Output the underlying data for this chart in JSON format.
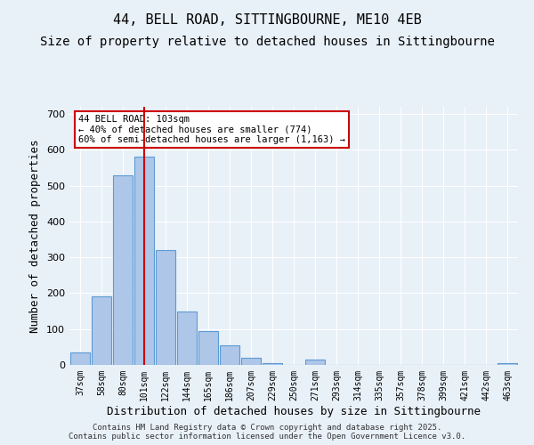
{
  "title1": "44, BELL ROAD, SITTINGBOURNE, ME10 4EB",
  "title2": "Size of property relative to detached houses in Sittingbourne",
  "xlabel": "Distribution of detached houses by size in Sittingbourne",
  "ylabel": "Number of detached properties",
  "bar_labels": [
    "37sqm",
    "58sqm",
    "80sqm",
    "101sqm",
    "122sqm",
    "144sqm",
    "165sqm",
    "186sqm",
    "207sqm",
    "229sqm",
    "250sqm",
    "271sqm",
    "293sqm",
    "314sqm",
    "335sqm",
    "357sqm",
    "378sqm",
    "399sqm",
    "421sqm",
    "442sqm",
    "463sqm"
  ],
  "bar_values": [
    35,
    190,
    530,
    580,
    320,
    150,
    95,
    55,
    20,
    5,
    0,
    15,
    0,
    0,
    0,
    0,
    0,
    0,
    0,
    0,
    5
  ],
  "bar_color": "#aec6e8",
  "bar_edge_color": "#5b9bd5",
  "vline_x": 3,
  "vline_color": "#cc0000",
  "annotation_text": "44 BELL ROAD: 103sqm\n← 40% of detached houses are smaller (774)\n60% of semi-detached houses are larger (1,163) →",
  "annotation_box_color": "#ffffff",
  "annotation_box_edge": "#cc0000",
  "ylim": [
    0,
    720
  ],
  "yticks": [
    0,
    100,
    200,
    300,
    400,
    500,
    600,
    700
  ],
  "bg_color": "#e8f0f8",
  "plot_bg": "#e8f0f8",
  "footer": "Contains HM Land Registry data © Crown copyright and database right 2025.\nContains public sector information licensed under the Open Government Licence v3.0.",
  "title1_fontsize": 11,
  "title2_fontsize": 10,
  "xlabel_fontsize": 9,
  "ylabel_fontsize": 9
}
